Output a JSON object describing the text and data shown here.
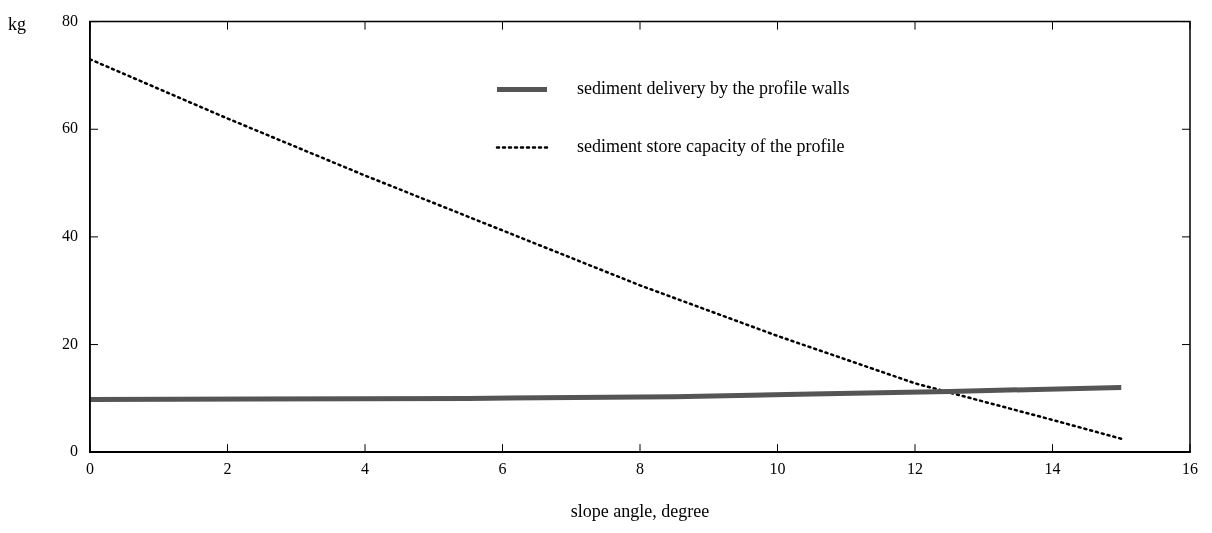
{
  "chart_data": {
    "type": "line",
    "xlabel": "slope angle, degree",
    "ylabel": "kg",
    "xlim": [
      0,
      16
    ],
    "xticks": [
      0,
      2,
      4,
      6,
      8,
      10,
      12,
      14,
      16
    ],
    "ylim": [
      0,
      80
    ],
    "yticks": [
      0,
      20,
      40,
      60,
      80
    ],
    "grid": false,
    "legend": "top right",
    "marker": "none",
    "series": [
      {
        "name": "sediment delivery by the profile walls",
        "color": "#555555",
        "line_style": "solid",
        "x": [
          0,
          5.5,
          8.5,
          10.5,
          12.5,
          15
        ],
        "values": [
          9.8,
          10,
          10.3,
          10.8,
          11.3,
          12
        ]
      },
      {
        "name": "sediment store capacity of the profile",
        "color": "#000000",
        "line_style": "dotted",
        "x": [
          0,
          2,
          4,
          6,
          8,
          10,
          12,
          14,
          15
        ],
        "values": [
          73,
          62,
          51.4,
          41.2,
          31,
          21.6,
          12.8,
          6,
          2.5
        ]
      }
    ]
  }
}
